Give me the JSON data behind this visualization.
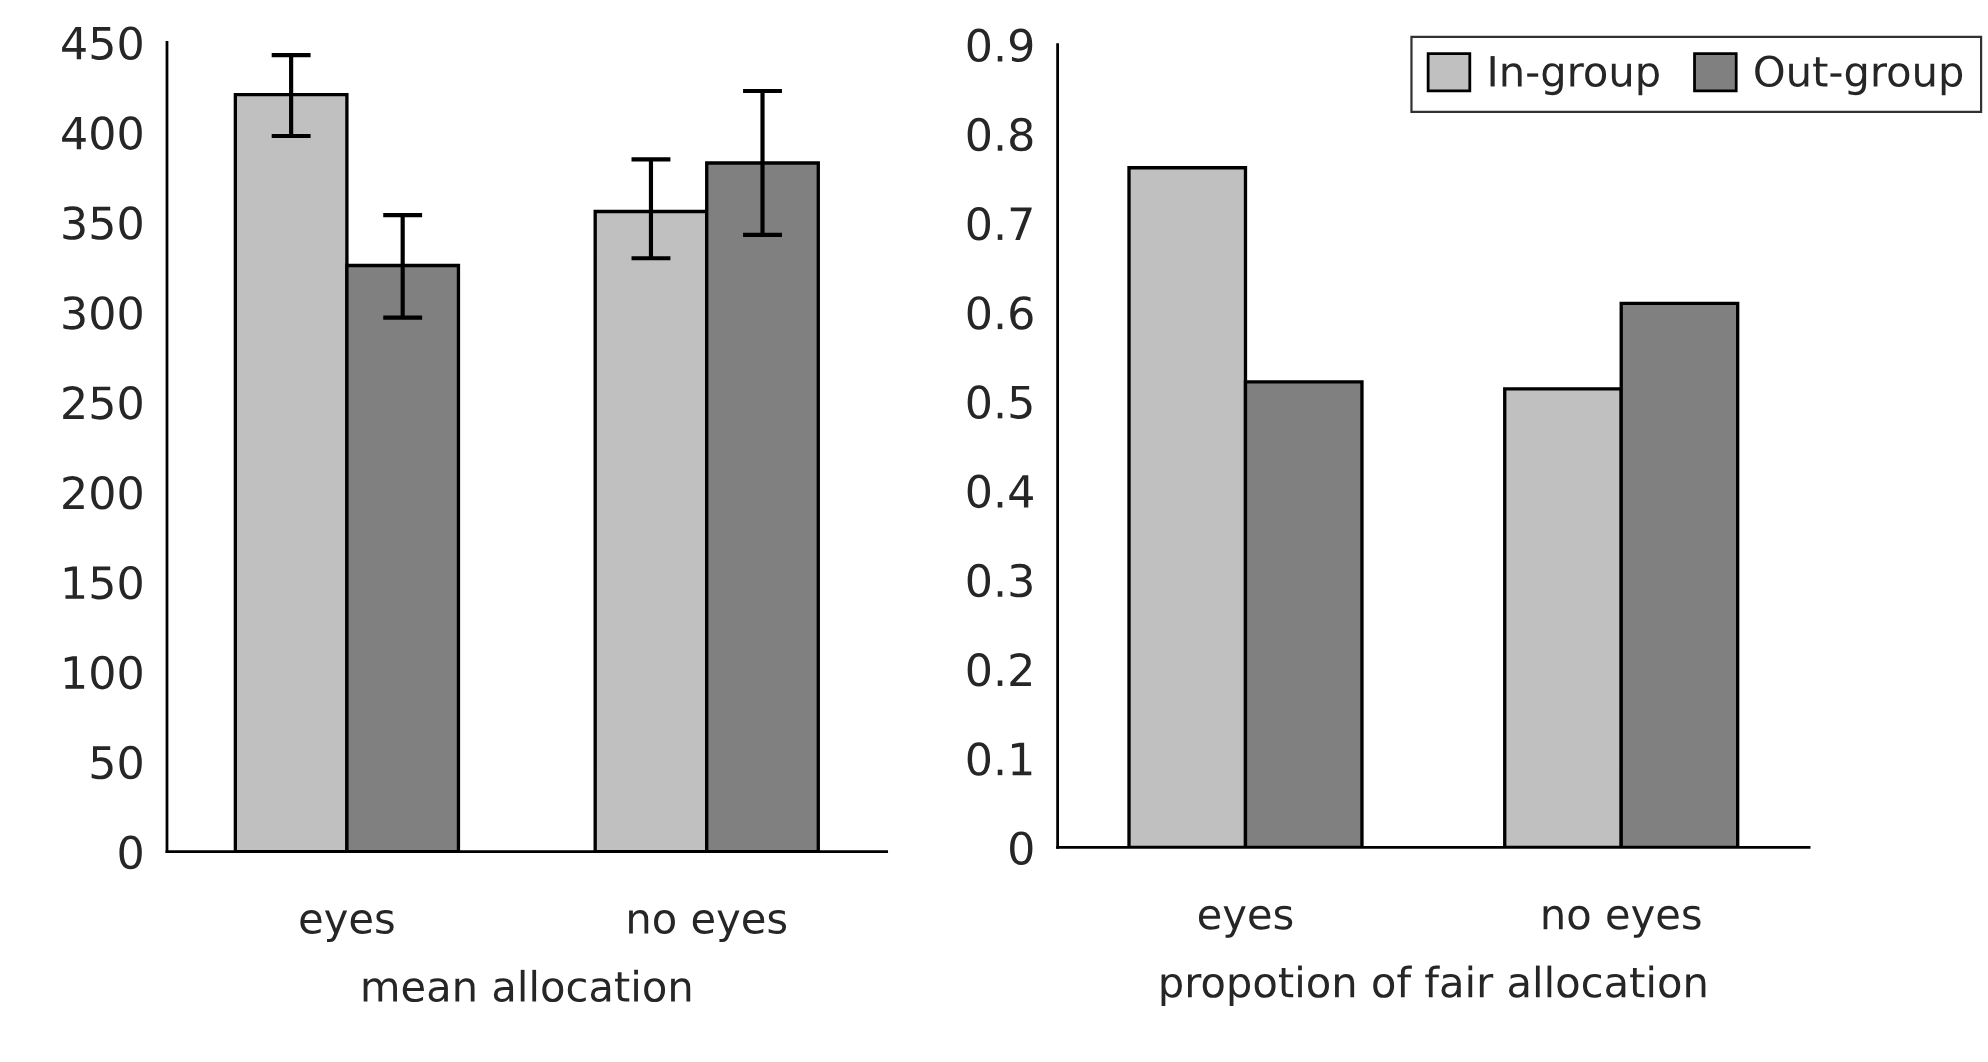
{
  "chart_data": [
    {
      "type": "bar",
      "categories": [
        "eyes",
        "no eyes"
      ],
      "xlabel": "mean allocation",
      "ylim": [
        0,
        450
      ],
      "yticks": [
        0,
        50,
        100,
        150,
        200,
        250,
        300,
        350,
        400,
        450
      ],
      "grid": false,
      "legend": false,
      "series": [
        {
          "color": "#c0c0c0",
          "values": [
            421,
            356
          ],
          "errors": [
            [
              398,
              443
            ],
            [
              330,
              385
            ]
          ]
        },
        {
          "color": "#808080",
          "values": [
            326,
            383
          ],
          "errors": [
            [
              297,
              354
            ],
            [
              343,
              423
            ]
          ]
        }
      ]
    },
    {
      "type": "bar",
      "categories": [
        "eyes",
        "no eyes"
      ],
      "xlabel": "propotion of fair allocation",
      "ylim": [
        0,
        0.9
      ],
      "yticks": [
        0,
        0.1,
        0.2,
        0.3,
        0.4,
        0.5,
        0.6,
        0.7,
        0.8,
        0.9
      ],
      "grid": false,
      "legend": "top right",
      "series": [
        {
          "name": "In-group",
          "color": "#c0c0c0",
          "values": [
            0.762,
            0.514
          ]
        },
        {
          "name": "Out-group",
          "color": "#808080",
          "values": [
            0.522,
            0.61
          ]
        }
      ]
    }
  ]
}
